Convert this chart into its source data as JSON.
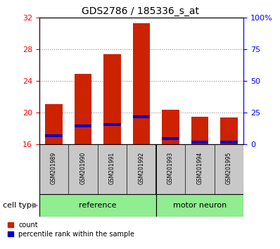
{
  "title": "GDS2786 / 185336_s_at",
  "samples": [
    "GSM201989",
    "GSM201990",
    "GSM201991",
    "GSM201992",
    "GSM201993",
    "GSM201994",
    "GSM201995"
  ],
  "count_values": [
    21.1,
    24.9,
    27.4,
    31.3,
    20.4,
    19.5,
    19.4
  ],
  "percentile_values": [
    17.1,
    18.3,
    18.5,
    19.5,
    16.7,
    16.3,
    16.3
  ],
  "percentile_heights": [
    0.35,
    0.35,
    0.35,
    0.35,
    0.35,
    0.35,
    0.35
  ],
  "ymin": 16,
  "ymax": 32,
  "yticks": [
    16,
    20,
    24,
    28,
    32
  ],
  "right_yticks": [
    0,
    25,
    50,
    75,
    100
  ],
  "bar_color": "#cc2200",
  "percentile_color": "#0000cc",
  "bar_width": 0.6,
  "label_bg_color": "#c8c8c8",
  "cell_type_bg_color": "#90ee90",
  "legend_items": [
    {
      "label": "count",
      "color": "#cc2200"
    },
    {
      "label": "percentile rank within the sample",
      "color": "#0000cc"
    }
  ]
}
